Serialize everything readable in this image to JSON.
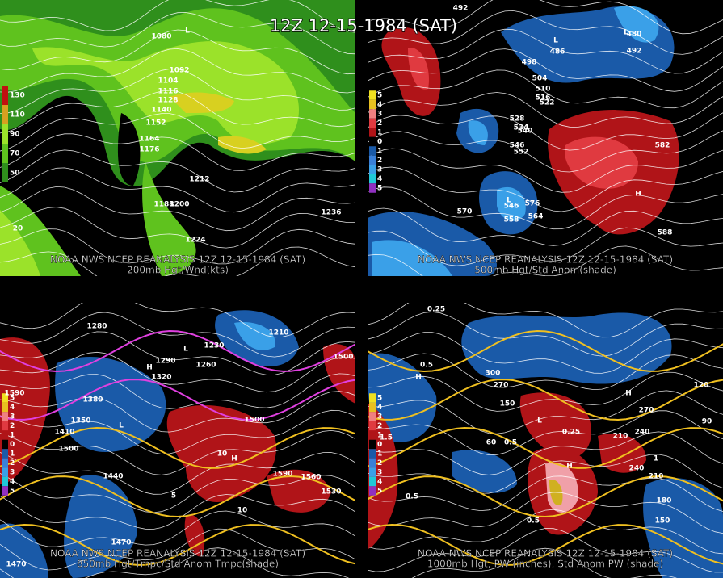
{
  "title": "12Z 12-15-1984 (SAT)",
  "panels": [
    {
      "caption": "NOAA NWS NCEP REANALYSIS 12Z 12-15-1984 (SAT)",
      "subtitle": "200mb Hgt/Wnd(kts)",
      "legend": [
        "130",
        "110",
        "90",
        "70",
        "50"
      ],
      "labels": [
        "1080",
        "1092",
        "1104",
        "1116",
        "1128",
        "1140",
        "1152",
        "1164",
        "1176",
        "1212",
        "1188",
        "1200",
        "1224",
        "1236",
        "L",
        "20"
      ]
    },
    {
      "caption": "NOAA NWS NCEP REANALYSIS 12Z 12-15-1984 (SAT)",
      "subtitle": "500mb Hgt/Std Anom(shade)",
      "legend": [
        "5",
        "4",
        "3",
        "2",
        "1",
        "0",
        "1",
        "2",
        "3",
        "4",
        "5"
      ],
      "labels": [
        "492",
        "480",
        "492",
        "498",
        "486",
        "504",
        "510",
        "516",
        "522",
        "528",
        "534",
        "540",
        "546",
        "552",
        "570",
        "576",
        "582",
        "588",
        "546",
        "558",
        "564",
        "L",
        "L",
        "L",
        "H"
      ]
    },
    {
      "caption": "NOAA NWS NCEP REANALYSIS 12Z 12-15-1984 (SAT)",
      "subtitle": "850mb Hgt/Tmpc/Std Anom Tmpc(shade)",
      "legend": [
        "5",
        "4",
        "3",
        "2",
        "1",
        "0",
        "1",
        "2",
        "3",
        "4",
        "5"
      ],
      "labels": [
        "1280",
        "1290",
        "1320",
        "1230",
        "1260",
        "1380",
        "1350",
        "1410",
        "1500",
        "1440",
        "1470",
        "1500",
        "1590",
        "1560",
        "1530",
        "1590",
        "1500",
        "1210",
        "1470",
        "10",
        "10",
        "5",
        "H",
        "H",
        "L",
        "L"
      ]
    },
    {
      "caption": "NOAA NWS NCEP REANALYSIS 12Z 12-15-1984 (SAT)",
      "subtitle": "1000mb Hgt, PW (inches), Std Anom PW (shade)",
      "legend": [
        "5",
        "4",
        "3",
        "2",
        "1",
        "0",
        "1",
        "2",
        "3",
        "4",
        "5"
      ],
      "labels": [
        "0.25",
        "0.5",
        "0.5",
        "270",
        "300",
        "150",
        "60",
        "210",
        "240",
        "270",
        "120",
        "90",
        "180",
        "150",
        "210",
        "240",
        "0.5",
        "0.25",
        "1",
        "1.5",
        "0.5",
        "H",
        "H",
        "H",
        "L"
      ]
    }
  ]
}
